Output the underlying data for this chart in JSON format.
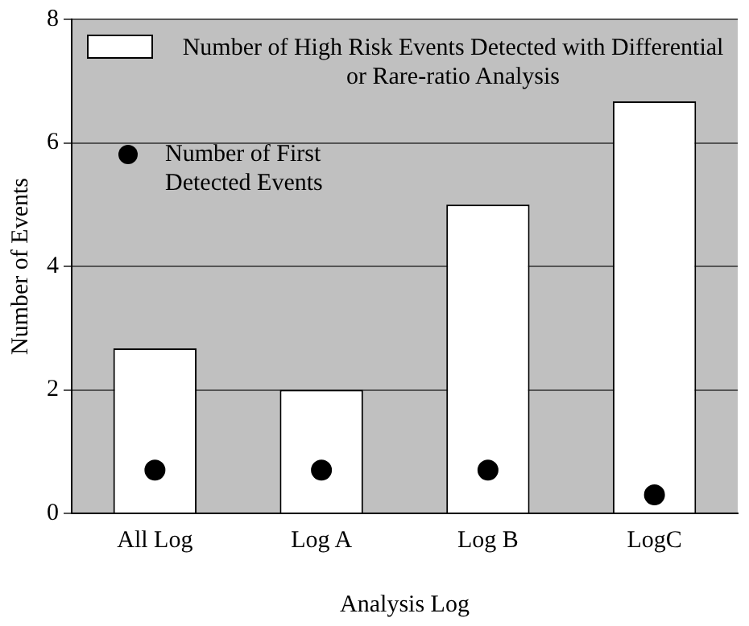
{
  "chart_data": {
    "type": "bar",
    "xlabel": "Analysis Log",
    "ylabel": "Number of Events",
    "categories": [
      "All Log",
      "Log A",
      "Log B",
      "LogC"
    ],
    "series": [
      {
        "name": "Number of High Risk Events Detected with Differential or Rare-ratio Analysis",
        "color": "#ffffff",
        "values": [
          2.67,
          2,
          5,
          6.67
        ]
      },
      {
        "type": "scatter",
        "name": "Number of First Detected Events",
        "color": "#000000",
        "x": [
          "All Log",
          "Log A",
          "Log B",
          "LogC"
        ],
        "values": [
          0.7,
          0.7,
          0.7,
          0.3
        ]
      }
    ],
    "ylim": [
      0,
      8
    ],
    "yticks": [
      0,
      2,
      4,
      6,
      8
    ],
    "grid": "y",
    "legend": "top left",
    "marker": "circle"
  }
}
